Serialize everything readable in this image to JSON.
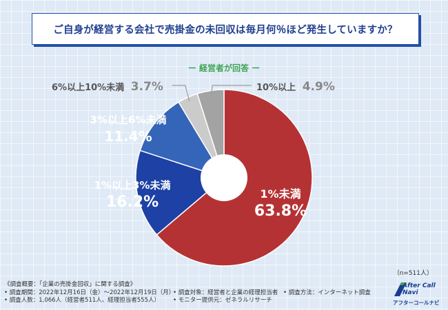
{
  "title": "ご自身が経営する会社で売掛金の未回収は毎月何％ほど発生していますか？",
  "respondent_label": "ー 経営者が回答 ー",
  "sample_note": "（n=511人）",
  "chart_data": {
    "type": "pie",
    "title": "ご自身が経営する会社で売掛金の未回収は毎月何％ほど発生していますか？",
    "subtitle": "経営者が回答",
    "donut": true,
    "categories": [
      "1%未満",
      "1%以上3%未満",
      "3%以上6%未満",
      "6%以上10%未満",
      "10%以上"
    ],
    "values": [
      63.8,
      16.2,
      11.4,
      3.7,
      4.9
    ],
    "value_labels": [
      "63.8%",
      "16.2%",
      "11.4%",
      "3.7%",
      "4.9%"
    ],
    "colors": [
      "#b53234",
      "#1d41a5",
      "#3565b8",
      "#cbcbcb",
      "#a3a3a3"
    ]
  },
  "footer": {
    "survey_summary": "《調査概要：「企業の売掛金回収」に関する調査》",
    "period": "• 調査期間：2022年12月16日（金）〜2022年12月19日（月）",
    "target": "• 調査対象：経営者と企業の経理担当者",
    "method": "• 調査方法：インターネット調査",
    "count": "• 調査人数：1,066人（経営者511人、経理担当者555人）",
    "monitor": "• モニター提供元：ゼネラルリサーチ"
  },
  "logo": {
    "brand_text": "After Call Navi",
    "kana_text": "アフターコールナビ"
  }
}
